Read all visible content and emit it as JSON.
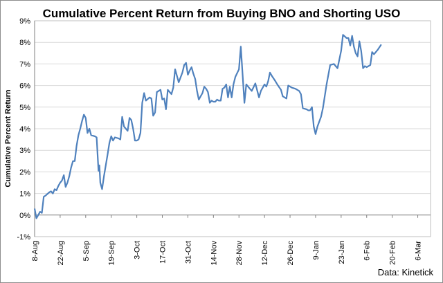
{
  "chart_data": {
    "type": "line",
    "title": "Cumulative Percent Return from Buying BNO and Shorting USO",
    "ylabel": "Cumulative Percent Return",
    "xlabel": "",
    "source": "Data: Kinetick",
    "y_ticks": [
      "-1%",
      "0%",
      "1%",
      "2%",
      "3%",
      "4%",
      "5%",
      "6%",
      "7%",
      "8%",
      "9%"
    ],
    "ylim": [
      -1,
      9
    ],
    "x_ticks": [
      "8-Aug",
      "22-Aug",
      "5-Sep",
      "19-Sep",
      "3-Oct",
      "17-Oct",
      "31-Oct",
      "14-Nov",
      "28-Nov",
      "12-Dec",
      "26-Dec",
      "9-Jan",
      "23-Jan",
      "6-Feb",
      "20-Feb",
      "6-Mar"
    ],
    "x_tick_days": [
      0,
      14,
      28,
      42,
      56,
      70,
      84,
      98,
      112,
      126,
      140,
      154,
      168,
      182,
      196,
      210
    ],
    "grid": true,
    "line_color": "#4f81bd",
    "series": [
      {
        "name": "",
        "points": [
          [
            0,
            0.3
          ],
          [
            1,
            -0.15
          ],
          [
            3,
            0.15
          ],
          [
            4,
            0.1
          ],
          [
            5,
            0.85
          ],
          [
            6,
            0.9
          ],
          [
            8,
            1.05
          ],
          [
            9,
            1.1
          ],
          [
            10,
            1.0
          ],
          [
            11,
            1.2
          ],
          [
            12,
            1.15
          ],
          [
            13,
            1.35
          ],
          [
            14,
            1.5
          ],
          [
            15,
            1.6
          ],
          [
            16,
            1.85
          ],
          [
            17,
            1.3
          ],
          [
            18,
            1.5
          ],
          [
            19,
            1.8
          ],
          [
            20,
            2.2
          ],
          [
            21,
            2.5
          ],
          [
            22,
            2.5
          ],
          [
            23,
            3.2
          ],
          [
            24,
            3.7
          ],
          [
            25,
            4.0
          ],
          [
            26,
            4.35
          ],
          [
            27,
            4.65
          ],
          [
            28,
            4.5
          ],
          [
            29,
            3.8
          ],
          [
            30,
            4.0
          ],
          [
            31,
            3.7
          ],
          [
            33,
            3.65
          ],
          [
            34,
            3.6
          ],
          [
            35,
            2.05
          ],
          [
            35.5,
            2.3
          ],
          [
            36,
            1.5
          ],
          [
            37,
            1.2
          ],
          [
            38,
            1.8
          ],
          [
            40,
            2.8
          ],
          [
            41,
            3.35
          ],
          [
            42,
            3.65
          ],
          [
            43,
            3.45
          ],
          [
            44,
            3.6
          ],
          [
            46,
            3.55
          ],
          [
            47,
            3.5
          ],
          [
            48,
            4.55
          ],
          [
            49,
            4.1
          ],
          [
            50,
            4.0
          ],
          [
            51,
            3.9
          ],
          [
            52,
            4.5
          ],
          [
            53,
            4.4
          ],
          [
            54,
            4.0
          ],
          [
            55,
            3.45
          ],
          [
            56,
            3.45
          ],
          [
            57,
            3.5
          ],
          [
            58,
            3.8
          ],
          [
            59,
            5.2
          ],
          [
            60,
            5.65
          ],
          [
            61,
            5.3
          ],
          [
            63,
            5.45
          ],
          [
            64,
            5.4
          ],
          [
            65,
            4.6
          ],
          [
            66,
            4.75
          ],
          [
            67,
            5.7
          ],
          [
            69,
            5.8
          ],
          [
            70,
            5.35
          ],
          [
            71,
            5.4
          ],
          [
            72,
            4.9
          ],
          [
            73,
            5.8
          ],
          [
            74,
            5.7
          ],
          [
            75,
            5.6
          ],
          [
            76,
            5.9
          ],
          [
            77,
            6.75
          ],
          [
            79,
            6.15
          ],
          [
            81,
            6.6
          ],
          [
            82,
            6.95
          ],
          [
            83,
            7.05
          ],
          [
            84,
            6.5
          ],
          [
            85,
            6.7
          ],
          [
            86,
            6.85
          ],
          [
            87,
            6.55
          ],
          [
            88,
            6.3
          ],
          [
            89,
            5.75
          ],
          [
            90,
            5.35
          ],
          [
            92,
            5.65
          ],
          [
            93,
            5.95
          ],
          [
            94,
            5.85
          ],
          [
            95,
            5.7
          ],
          [
            96,
            5.2
          ],
          [
            97,
            5.3
          ],
          [
            98,
            5.25
          ],
          [
            99,
            5.25
          ],
          [
            100,
            5.35
          ],
          [
            101,
            5.3
          ],
          [
            102,
            5.3
          ],
          [
            103,
            5.85
          ],
          [
            104,
            5.9
          ],
          [
            105,
            6.05
          ],
          [
            106,
            5.45
          ],
          [
            107,
            5.95
          ],
          [
            108,
            5.45
          ],
          [
            109,
            6.05
          ],
          [
            110,
            6.4
          ],
          [
            112,
            6.75
          ],
          [
            113,
            7.8
          ],
          [
            114,
            6.5
          ],
          [
            115,
            5.2
          ],
          [
            116,
            6.05
          ],
          [
            118,
            5.85
          ],
          [
            119,
            5.75
          ],
          [
            121,
            6.1
          ],
          [
            123,
            5.45
          ],
          [
            124,
            5.75
          ],
          [
            126,
            6.05
          ],
          [
            127,
            5.95
          ],
          [
            128,
            6.2
          ],
          [
            129,
            6.6
          ],
          [
            130,
            6.45
          ],
          [
            132,
            6.2
          ],
          [
            133,
            6.05
          ],
          [
            135,
            5.8
          ],
          [
            136,
            5.5
          ],
          [
            138,
            5.4
          ],
          [
            139,
            6.0
          ],
          [
            141,
            5.9
          ],
          [
            143,
            5.85
          ],
          [
            145,
            5.75
          ],
          [
            146,
            5.6
          ],
          [
            147,
            4.95
          ],
          [
            149,
            4.9
          ],
          [
            150,
            4.85
          ],
          [
            151,
            4.85
          ],
          [
            152,
            5.0
          ],
          [
            153,
            4.1
          ],
          [
            154,
            3.75
          ],
          [
            155,
            4.1
          ],
          [
            157,
            4.55
          ],
          [
            158,
            4.95
          ],
          [
            160,
            6.05
          ],
          [
            162,
            6.95
          ],
          [
            164,
            7.0
          ],
          [
            166,
            6.8
          ],
          [
            168,
            7.6
          ],
          [
            169,
            8.35
          ],
          [
            171,
            8.2
          ],
          [
            172,
            8.2
          ],
          [
            173,
            7.85
          ],
          [
            174,
            8.3
          ],
          [
            175,
            7.8
          ],
          [
            176,
            7.5
          ],
          [
            177,
            7.35
          ],
          [
            178,
            8.05
          ],
          [
            179,
            7.6
          ],
          [
            180,
            6.8
          ],
          [
            181,
            6.9
          ],
          [
            182,
            6.85
          ],
          [
            184,
            6.95
          ],
          [
            185,
            7.55
          ],
          [
            186,
            7.45
          ],
          [
            188,
            7.65
          ],
          [
            190,
            7.9
          ]
        ]
      }
    ]
  }
}
